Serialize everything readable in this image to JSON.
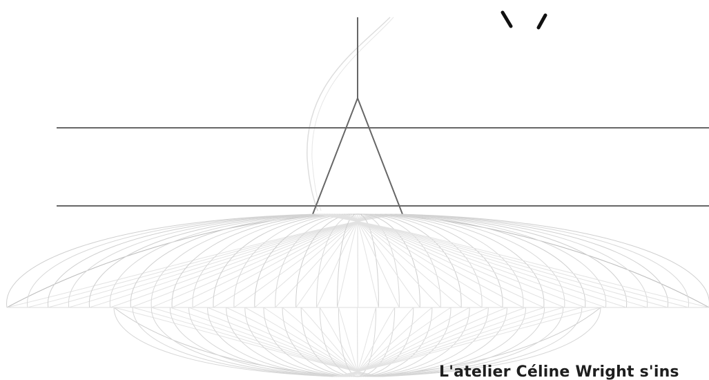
{
  "caption": "L'atelier Céline Wright s'ins"
}
